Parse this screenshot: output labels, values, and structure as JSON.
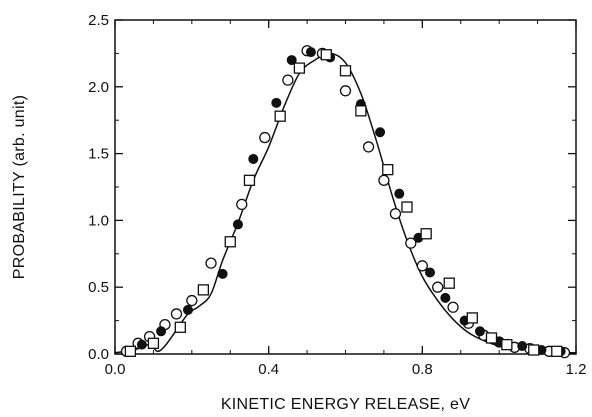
{
  "chart_data": {
    "type": "scatter",
    "title": "",
    "xlabel": "KINETIC ENERGY RELEASE, eV",
    "ylabel": "PROBABILITY (arb. unit)",
    "xlim": [
      0.0,
      1.2
    ],
    "ylim": [
      0.0,
      2.5
    ],
    "xticks": [
      0.0,
      0.4,
      0.8,
      1.2
    ],
    "xtick_labels": [
      "0.0",
      "0.4",
      "0.8",
      "1.2"
    ],
    "yticks": [
      0.0,
      0.5,
      1.0,
      1.5,
      2.0,
      2.5
    ],
    "ytick_labels": [
      "0.0",
      "0.5",
      "1.0",
      "1.5",
      "2.0",
      "2.5"
    ],
    "grid": false,
    "legend": "none",
    "series": [
      {
        "marker": "open-circle",
        "points": [
          [
            0.03,
            0.02
          ],
          [
            0.06,
            0.08
          ],
          [
            0.09,
            0.13
          ],
          [
            0.13,
            0.22
          ],
          [
            0.16,
            0.3
          ],
          [
            0.2,
            0.4
          ],
          [
            0.25,
            0.68
          ],
          [
            0.33,
            1.12
          ],
          [
            0.39,
            1.62
          ],
          [
            0.45,
            2.05
          ],
          [
            0.5,
            2.27
          ],
          [
            0.54,
            2.25
          ],
          [
            0.6,
            1.97
          ],
          [
            0.66,
            1.55
          ],
          [
            0.7,
            1.3
          ],
          [
            0.73,
            1.05
          ],
          [
            0.77,
            0.83
          ],
          [
            0.8,
            0.66
          ],
          [
            0.84,
            0.5
          ],
          [
            0.88,
            0.35
          ],
          [
            0.92,
            0.23
          ],
          [
            0.96,
            0.14
          ],
          [
            1.0,
            0.09
          ],
          [
            1.04,
            0.05
          ],
          [
            1.08,
            0.04
          ],
          [
            1.13,
            0.02
          ],
          [
            1.17,
            0.01
          ]
        ]
      },
      {
        "marker": "filled-circle",
        "points": [
          [
            0.07,
            0.07
          ],
          [
            0.12,
            0.17
          ],
          [
            0.19,
            0.33
          ],
          [
            0.28,
            0.6
          ],
          [
            0.32,
            0.97
          ],
          [
            0.36,
            1.46
          ],
          [
            0.42,
            1.88
          ],
          [
            0.46,
            2.2
          ],
          [
            0.51,
            2.26
          ],
          [
            0.56,
            2.22
          ],
          [
            0.64,
            1.87
          ],
          [
            0.69,
            1.66
          ],
          [
            0.74,
            1.2
          ],
          [
            0.79,
            0.87
          ],
          [
            0.82,
            0.61
          ],
          [
            0.86,
            0.42
          ],
          [
            0.91,
            0.25
          ],
          [
            0.95,
            0.17
          ],
          [
            1.0,
            0.09
          ],
          [
            1.06,
            0.06
          ],
          [
            1.11,
            0.03
          ],
          [
            1.16,
            0.02
          ]
        ]
      },
      {
        "marker": "open-square",
        "points": [
          [
            0.04,
            0.02
          ],
          [
            0.1,
            0.08
          ],
          [
            0.17,
            0.2
          ],
          [
            0.23,
            0.48
          ],
          [
            0.3,
            0.84
          ],
          [
            0.35,
            1.3
          ],
          [
            0.43,
            1.78
          ],
          [
            0.48,
            2.14
          ],
          [
            0.55,
            2.24
          ],
          [
            0.6,
            2.12
          ],
          [
            0.64,
            1.82
          ],
          [
            0.71,
            1.38
          ],
          [
            0.76,
            1.1
          ],
          [
            0.81,
            0.9
          ],
          [
            0.87,
            0.53
          ],
          [
            0.93,
            0.27
          ],
          [
            0.98,
            0.12
          ],
          [
            1.02,
            0.07
          ],
          [
            1.09,
            0.03
          ],
          [
            1.15,
            0.02
          ]
        ]
      },
      {
        "marker": "solid-line",
        "points": [
          [
            0.0,
            0.01
          ],
          [
            0.05,
            0.03
          ],
          [
            0.09,
            0.07
          ],
          [
            0.11,
            0.02
          ],
          [
            0.13,
            0.06
          ],
          [
            0.16,
            0.18
          ],
          [
            0.19,
            0.3
          ],
          [
            0.22,
            0.36
          ],
          [
            0.25,
            0.45
          ],
          [
            0.28,
            0.7
          ],
          [
            0.32,
            0.98
          ],
          [
            0.36,
            1.3
          ],
          [
            0.4,
            1.55
          ],
          [
            0.44,
            1.85
          ],
          [
            0.48,
            2.1
          ],
          [
            0.52,
            2.2
          ],
          [
            0.56,
            2.25
          ],
          [
            0.6,
            2.18
          ],
          [
            0.64,
            1.95
          ],
          [
            0.68,
            1.6
          ],
          [
            0.72,
            1.2
          ],
          [
            0.76,
            0.85
          ],
          [
            0.8,
            0.58
          ],
          [
            0.84,
            0.4
          ],
          [
            0.88,
            0.26
          ],
          [
            0.92,
            0.16
          ],
          [
            0.96,
            0.1
          ],
          [
            1.0,
            0.06
          ],
          [
            1.04,
            0.04
          ],
          [
            1.08,
            0.03
          ],
          [
            1.12,
            0.02
          ],
          [
            1.16,
            0.01
          ],
          [
            1.2,
            0.01
          ]
        ]
      }
    ]
  }
}
